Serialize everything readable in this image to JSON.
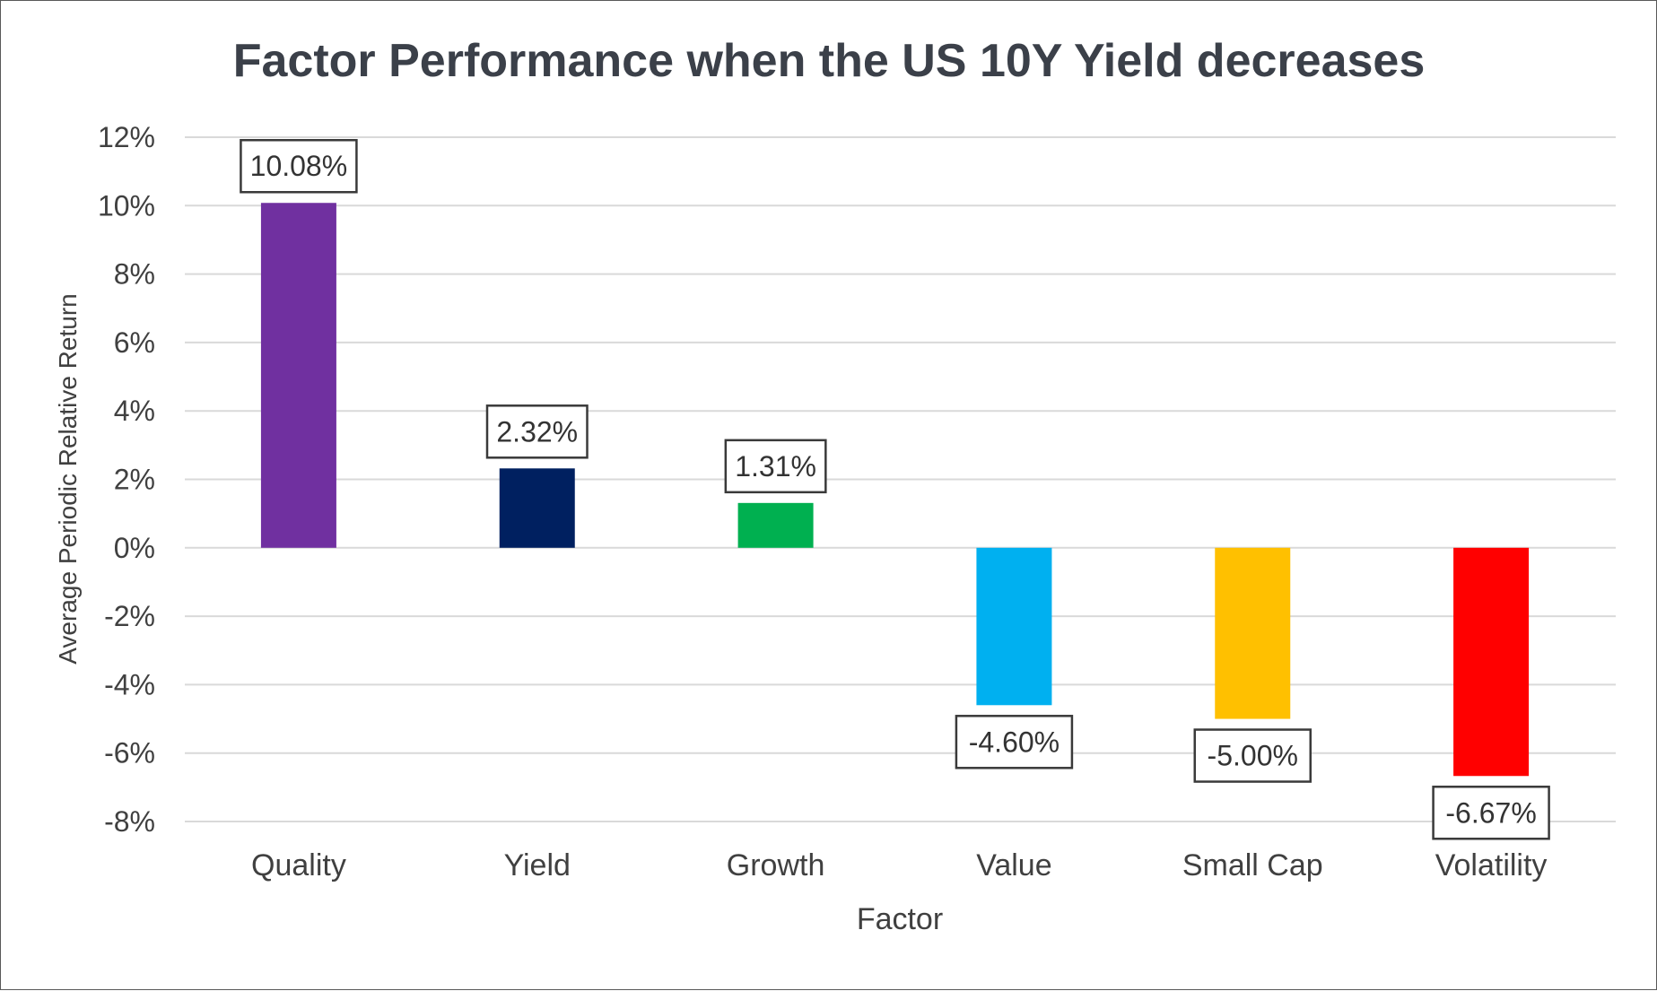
{
  "chart_data": {
    "type": "bar",
    "title": "Factor Performance when the US 10Y Yield decreases",
    "xlabel": "Factor",
    "ylabel": "Average Periodic Relative Return",
    "categories": [
      "Quality",
      "Yield",
      "Growth",
      "Value",
      "Small Cap",
      "Volatility"
    ],
    "values": [
      10.08,
      2.32,
      1.31,
      -4.6,
      -5.0,
      -6.67
    ],
    "data_labels": [
      "10.08%",
      "2.32%",
      "1.31%",
      "-4.60%",
      "-5.00%",
      "-6.67%"
    ],
    "colors": [
      "#7030a0",
      "#002060",
      "#00b050",
      "#00b0f0",
      "#ffc000",
      "#ff0000"
    ],
    "ylim": [
      -8,
      12
    ],
    "yticks": [
      12,
      10,
      8,
      6,
      4,
      2,
      0,
      -2,
      -4,
      -6,
      -8
    ],
    "ytick_labels": [
      "12%",
      "10%",
      "8%",
      "6%",
      "4%",
      "2%",
      "0%",
      "-2%",
      "-4%",
      "-6%",
      "-8%"
    ],
    "grid": true,
    "legend": "none"
  }
}
